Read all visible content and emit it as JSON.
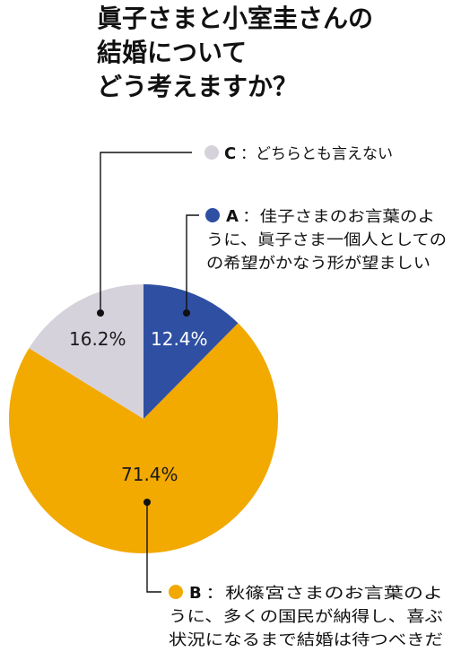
{
  "chart_data": {
    "type": "pie",
    "title_lines": [
      "眞子さまと小室圭さんの",
      "結婚について",
      "どう考えますか？"
    ],
    "slices": [
      {
        "key": "A",
        "value": 12.4,
        "label": "12.4%",
        "color": "#2f4fa2",
        "legend_letter": "A",
        "legend_lines": [
          "：佳子さまのお言葉のよ",
          "うに、眞子さま一個人としての",
          "の希望がかなう形が望ましい"
        ]
      },
      {
        "key": "B",
        "value": 71.4,
        "label": "71.4%",
        "color": "#f2a900",
        "legend_letter": "B",
        "legend_lines": [
          "：秋篠宮さまのお言葉のよ",
          "うに、多くの国民が納得し、喜ぶ",
          "状況になるまで結婚は待つべきだ"
        ]
      },
      {
        "key": "C",
        "value": 16.2,
        "label": "16.2%",
        "color": "#d6d2dc",
        "legend_letter": "C",
        "legend_lines": [
          "：どちらとも言えない"
        ]
      }
    ]
  }
}
